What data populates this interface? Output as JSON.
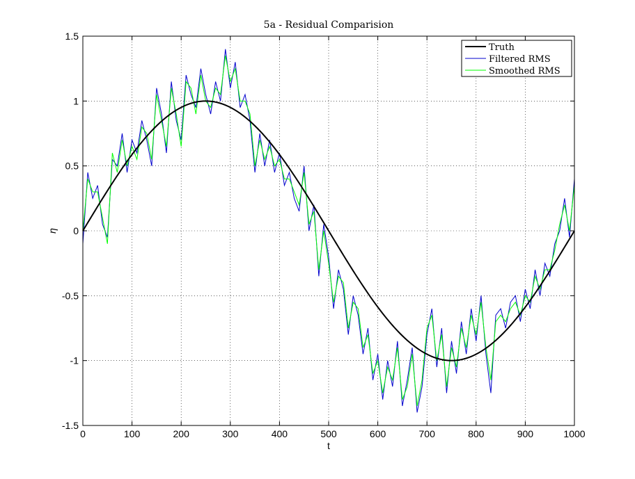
{
  "chart_data": {
    "type": "line",
    "title": "5a - Residual Comparision",
    "xlabel": "t",
    "ylabel": "η",
    "xlim": [
      0,
      1000
    ],
    "ylim": [
      -1.5,
      1.5
    ],
    "xticks": [
      0,
      100,
      200,
      300,
      400,
      500,
      600,
      700,
      800,
      900,
      1000
    ],
    "xtick_labels": [
      "0",
      "100",
      "200",
      "300",
      "400",
      "500",
      "600",
      "700",
      "800",
      "900",
      "1000"
    ],
    "yticks": [
      -1.5,
      -1,
      -0.5,
      0,
      0.5,
      1,
      1.5
    ],
    "ytick_labels": [
      "-1.5",
      "-1",
      "-0.5",
      "0",
      "0.5",
      "1",
      "1.5"
    ],
    "grid": true,
    "legend_position": "top-right",
    "legend": [
      "Truth",
      "Filtered RMS",
      "Smoothed RMS"
    ],
    "series": [
      {
        "name": "Truth",
        "color": "#000000",
        "x": [
          0,
          50,
          100,
          150,
          200,
          250,
          300,
          350,
          400,
          450,
          500,
          550,
          600,
          650,
          700,
          750,
          800,
          850,
          900,
          950,
          1000
        ],
        "y": [
          0,
          0.31,
          0.59,
          0.81,
          0.95,
          1.0,
          0.95,
          0.81,
          0.59,
          0.31,
          0,
          -0.31,
          -0.59,
          -0.81,
          -0.95,
          -1.0,
          -0.95,
          -0.81,
          -0.59,
          -0.31,
          0
        ]
      },
      {
        "name": "Filtered RMS",
        "color": "#0000cc",
        "x": [
          0,
          10,
          20,
          30,
          40,
          50,
          60,
          70,
          80,
          90,
          100,
          110,
          120,
          130,
          140,
          150,
          160,
          170,
          180,
          190,
          200,
          210,
          220,
          230,
          240,
          250,
          260,
          270,
          280,
          290,
          300,
          310,
          320,
          330,
          340,
          350,
          360,
          370,
          380,
          390,
          400,
          410,
          420,
          430,
          440,
          450,
          460,
          470,
          480,
          490,
          500,
          510,
          520,
          530,
          540,
          550,
          560,
          570,
          580,
          590,
          600,
          610,
          620,
          630,
          640,
          650,
          660,
          670,
          680,
          690,
          700,
          710,
          720,
          730,
          740,
          750,
          760,
          770,
          780,
          790,
          800,
          810,
          820,
          830,
          840,
          850,
          860,
          870,
          880,
          890,
          900,
          910,
          920,
          930,
          940,
          950,
          960,
          970,
          980,
          990,
          1000
        ],
        "y": [
          -0.1,
          0.45,
          0.25,
          0.35,
          0.05,
          -0.05,
          0.55,
          0.5,
          0.75,
          0.45,
          0.7,
          0.6,
          0.85,
          0.7,
          0.5,
          1.1,
          0.9,
          0.6,
          1.15,
          0.85,
          0.7,
          1.2,
          1.05,
          0.95,
          1.25,
          1.05,
          0.9,
          1.15,
          1.0,
          1.4,
          1.1,
          1.3,
          0.95,
          1.05,
          0.85,
          0.45,
          0.75,
          0.5,
          0.7,
          0.45,
          0.6,
          0.35,
          0.45,
          0.25,
          0.15,
          0.5,
          0.0,
          0.2,
          -0.35,
          0.05,
          -0.2,
          -0.6,
          -0.3,
          -0.45,
          -0.8,
          -0.5,
          -0.65,
          -0.95,
          -0.75,
          -1.15,
          -0.95,
          -1.3,
          -1.0,
          -1.2,
          -0.85,
          -1.35,
          -1.15,
          -0.9,
          -1.4,
          -1.2,
          -0.8,
          -0.6,
          -1.05,
          -0.75,
          -1.25,
          -0.85,
          -1.1,
          -0.7,
          -0.95,
          -0.6,
          -0.85,
          -0.5,
          -0.95,
          -1.25,
          -0.65,
          -0.6,
          -0.75,
          -0.55,
          -0.5,
          -0.7,
          -0.45,
          -0.6,
          -0.3,
          -0.5,
          -0.25,
          -0.35,
          -0.1,
          0.0,
          0.25,
          -0.05,
          0.4
        ]
      },
      {
        "name": "Smoothed RMS",
        "color": "#00ff00",
        "x": [
          0,
          10,
          20,
          30,
          40,
          50,
          60,
          70,
          80,
          90,
          100,
          110,
          120,
          130,
          140,
          150,
          160,
          170,
          180,
          190,
          200,
          210,
          220,
          230,
          240,
          250,
          260,
          270,
          280,
          290,
          300,
          310,
          320,
          330,
          340,
          350,
          360,
          370,
          380,
          390,
          400,
          410,
          420,
          430,
          440,
          450,
          460,
          470,
          480,
          490,
          500,
          510,
          520,
          530,
          540,
          550,
          560,
          570,
          580,
          590,
          600,
          610,
          620,
          630,
          640,
          650,
          660,
          670,
          680,
          690,
          700,
          710,
          720,
          730,
          740,
          750,
          760,
          770,
          780,
          790,
          800,
          810,
          820,
          830,
          840,
          850,
          860,
          870,
          880,
          890,
          900,
          910,
          920,
          930,
          940,
          950,
          960,
          970,
          980,
          990,
          1000
        ],
        "y": [
          0.0,
          0.4,
          0.3,
          0.3,
          0.1,
          -0.1,
          0.6,
          0.45,
          0.7,
          0.5,
          0.65,
          0.55,
          0.8,
          0.75,
          0.55,
          1.05,
          0.85,
          0.65,
          1.1,
          0.9,
          0.65,
          1.15,
          1.1,
          0.9,
          1.2,
          1.0,
          0.95,
          1.1,
          1.05,
          1.35,
          1.15,
          1.25,
          1.0,
          1.0,
          0.9,
          0.5,
          0.7,
          0.55,
          0.65,
          0.5,
          0.55,
          0.4,
          0.4,
          0.3,
          0.2,
          0.45,
          0.05,
          0.15,
          -0.3,
          0.0,
          -0.25,
          -0.55,
          -0.35,
          -0.4,
          -0.75,
          -0.55,
          -0.6,
          -0.9,
          -0.8,
          -1.1,
          -1.0,
          -1.25,
          -1.05,
          -1.15,
          -0.9,
          -1.3,
          -1.2,
          -0.95,
          -1.35,
          -1.15,
          -0.75,
          -0.65,
          -1.0,
          -0.8,
          -1.2,
          -0.9,
          -1.05,
          -0.75,
          -0.9,
          -0.65,
          -0.8,
          -0.55,
          -0.9,
          -1.15,
          -0.7,
          -0.65,
          -0.7,
          -0.6,
          -0.55,
          -0.65,
          -0.5,
          -0.55,
          -0.35,
          -0.45,
          -0.3,
          -0.3,
          -0.15,
          0.05,
          0.2,
          0.0,
          0.35
        ]
      }
    ]
  }
}
